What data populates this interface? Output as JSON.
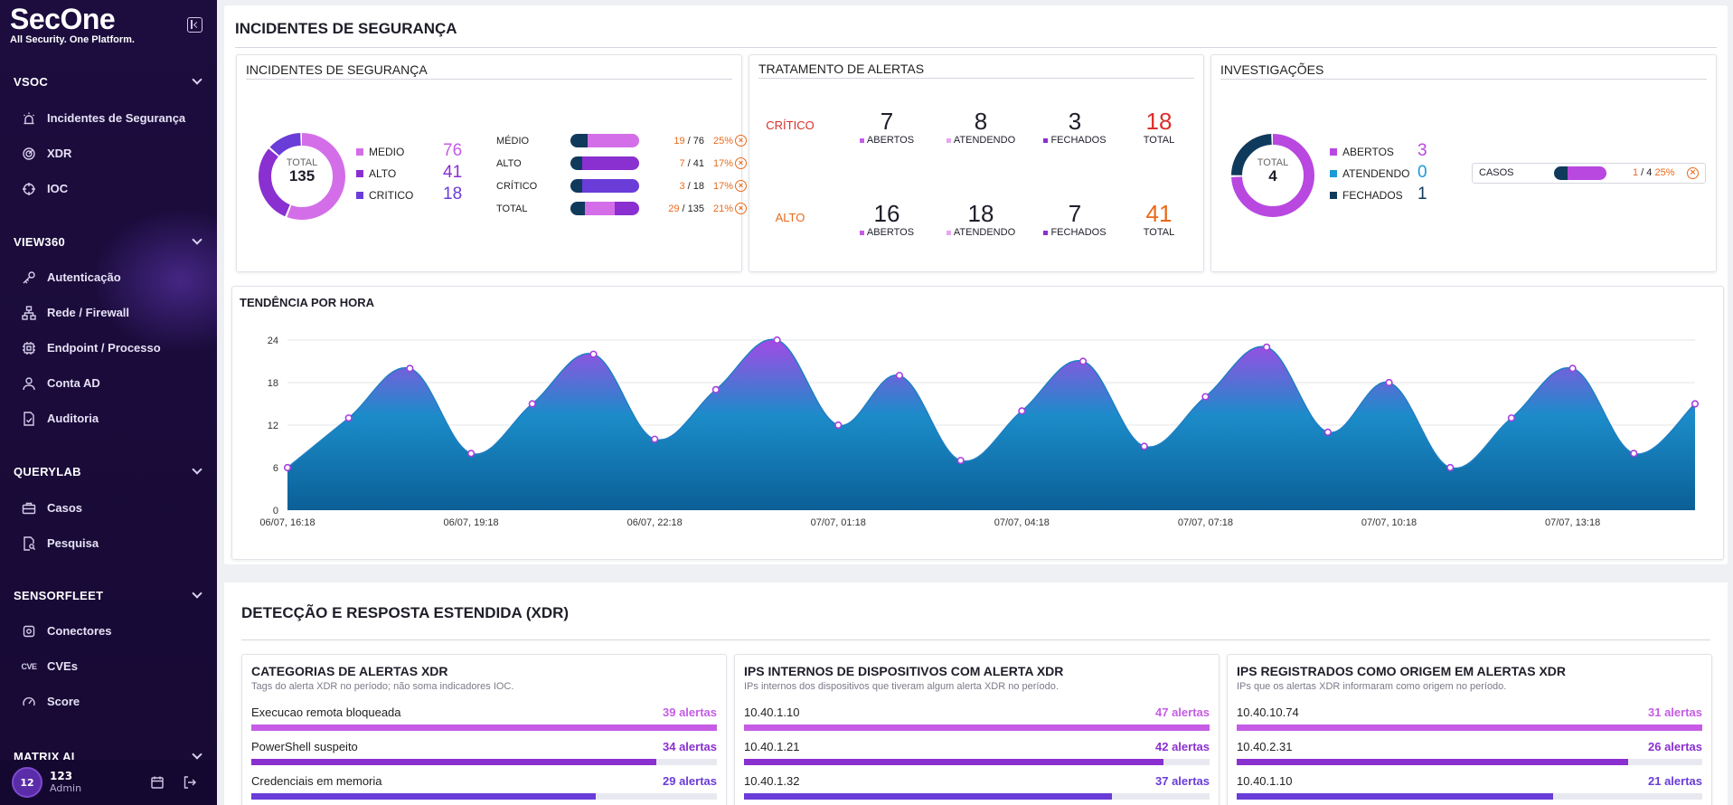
{
  "brand": {
    "name": "SecOne",
    "tagline": "All Security. One Platform."
  },
  "sidebar": {
    "sections": [
      {
        "title": "VSOC",
        "items": [
          "Incidentes de Segurança",
          "XDR",
          "IOC"
        ]
      },
      {
        "title": "VIEW360",
        "items": [
          "Autenticação",
          "Rede / Firewall",
          "Endpoint / Processo",
          "Conta AD",
          "Auditoria"
        ]
      },
      {
        "title": "QUERYLAB",
        "items": [
          "Casos",
          "Pesquisa"
        ]
      },
      {
        "title": "SENSORFLEET",
        "items": [
          "Conectores",
          "CVEs",
          "Score"
        ]
      },
      {
        "title": "MATRIX AI",
        "items": []
      }
    ],
    "user": {
      "avatar": "12",
      "name": "123",
      "role": "Admin"
    }
  },
  "incidentes_panel": {
    "title": "INCIDENTES DE SEGURANÇA",
    "card_title": "INCIDENTES DE SEGURANÇA",
    "donut": {
      "total_label": "TOTAL",
      "total": "135"
    },
    "legend": [
      {
        "label": "MEDIO",
        "value": "76",
        "color": "#d36ee8"
      },
      {
        "label": "ALTO",
        "value": "41",
        "color": "#8a2fd0"
      },
      {
        "label": "CRITICO",
        "value": "18",
        "color": "#6a3cd8"
      }
    ],
    "bars": [
      {
        "label": "MÉDIO",
        "done": "19",
        "total": "76",
        "pct": "25%",
        "fraction": 0.25,
        "color": "#d36ee8"
      },
      {
        "label": "ALTO",
        "done": "7",
        "total": "41",
        "pct": "17%",
        "fraction": 0.17,
        "color": "#8a2fd0"
      },
      {
        "label": "CRÍTICO",
        "done": "3",
        "total": "18",
        "pct": "17%",
        "fraction": 0.17,
        "color": "#6a3cd8"
      },
      {
        "label": "TOTAL",
        "done": "29",
        "total": "135",
        "pct": "21%",
        "fraction": 0.21,
        "color": "#b055e0"
      }
    ],
    "sep": "/"
  },
  "tratamento": {
    "title": "TRATAMENTO DE ALERTAS",
    "rows": [
      {
        "level": "CRÍTICO",
        "abertos": "7",
        "atendendo": "8",
        "fechados": "3",
        "total": "18",
        "color": "#d9302c"
      },
      {
        "level": "ALTO",
        "abertos": "16",
        "atendendo": "18",
        "fechados": "7",
        "total": "41",
        "color": "#e86a1a"
      }
    ],
    "labels": {
      "abertos": "ABERTOS",
      "atendendo": "ATENDENDO",
      "fechados": "FECHADOS",
      "total": "TOTAL"
    }
  },
  "investigacoes": {
    "title": "INVESTIGAÇÕES",
    "donut": {
      "total_label": "TOTAL",
      "total": "4"
    },
    "legend": [
      {
        "label": "ABERTOS",
        "value": "3",
        "color": "#b848e0"
      },
      {
        "label": "ATENDENDO",
        "value": "0",
        "color": "#1a9ad6"
      },
      {
        "label": "FECHADOS",
        "value": "1",
        "color": "#103a5c"
      }
    ],
    "casos": {
      "label": "CASOS",
      "done": "1",
      "total": "4",
      "pct": "25%",
      "fraction": 0.25
    }
  },
  "chart_data": {
    "type": "area",
    "title": "TENDÊNCIA POR HORA",
    "x_tick_labels": [
      "06/07, 16:18",
      "06/07, 19:18",
      "06/07, 22:18",
      "07/07, 01:18",
      "07/07, 04:18",
      "07/07, 07:18",
      "07/07, 10:18",
      "07/07, 13:18"
    ],
    "y_ticks": [
      0,
      6,
      12,
      18,
      24
    ],
    "ylim": [
      0,
      24
    ],
    "series": [
      {
        "values": [
          6,
          13,
          20,
          8,
          15,
          22,
          10,
          17,
          24,
          12,
          19,
          7,
          14,
          21,
          9,
          16,
          23,
          11,
          18,
          6,
          13,
          20,
          8,
          15
        ]
      }
    ],
    "grid": true
  },
  "xdr": {
    "title": "DETECÇÃO E RESPOSTA ESTENDIDA (XDR)",
    "cards": [
      {
        "title": "CATEGORIAS DE ALERTAS XDR",
        "subtitle": "Tags do alerta XDR no período; não soma indicadores IOC.",
        "rows": [
          {
            "label": "Execucao remota bloqueada",
            "count": "39 alertas",
            "fraction": 1.0,
            "color": "#c65ce6"
          },
          {
            "label": "PowerShell suspeito",
            "count": "34 alertas",
            "fraction": 0.87,
            "color": "#8a2fd0"
          },
          {
            "label": "Credenciais em memoria",
            "count": "29 alertas",
            "fraction": 0.74,
            "color": "#6a3cd8"
          }
        ]
      },
      {
        "title": "IPS INTERNOS DE DISPOSITIVOS COM ALERTA XDR",
        "subtitle": "IPs internos dos dispositivos que tiveram algum alerta XDR no período.",
        "rows": [
          {
            "label": "10.40.1.10",
            "count": "47 alertas",
            "fraction": 1.0,
            "color": "#c65ce6"
          },
          {
            "label": "10.40.1.21",
            "count": "42 alertas",
            "fraction": 0.9,
            "color": "#8a2fd0"
          },
          {
            "label": "10.40.1.32",
            "count": "37 alertas",
            "fraction": 0.79,
            "color": "#6a3cd8"
          }
        ]
      },
      {
        "title": "IPS REGISTRADOS COMO ORIGEM EM ALERTAS XDR",
        "subtitle": "IPs que os alertas XDR informaram como origem no período.",
        "rows": [
          {
            "label": "10.40.10.74",
            "count": "31 alertas",
            "fraction": 1.0,
            "color": "#c65ce6"
          },
          {
            "label": "10.40.2.31",
            "count": "26 alertas",
            "fraction": 0.84,
            "color": "#8a2fd0"
          },
          {
            "label": "10.40.1.10",
            "count": "21 alertas",
            "fraction": 0.68,
            "color": "#6a3cd8"
          }
        ]
      }
    ]
  },
  "colors": {
    "sidebar_bg": "#1c0d3e",
    "accent_purple": "#b848e0",
    "accent_orange": "#e86a1a",
    "accent_red": "#d9302c",
    "chart_blue": "#1b8cc9"
  }
}
